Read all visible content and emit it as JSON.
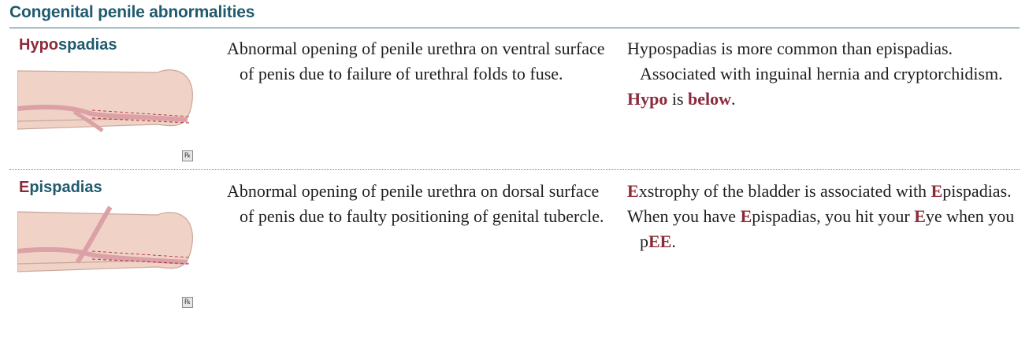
{
  "section_title": "Congenital penile abnormalities",
  "rows": [
    {
      "term_hl": "Hypo",
      "term_rest": "spadias",
      "illustration": "penis-ventral-urethra-illustration",
      "rx_symbol": "℞",
      "description": "Abnormal opening of penile urethra on ventral surface of penis due to failure of urethral folds to fuse.",
      "note1": "Hypospadias is more common than epispadias. Associated with inguinal hernia and cryptorchidism.",
      "mnemonic_a": "Hypo",
      "mnemonic_b": " is ",
      "mnemonic_c": "below",
      "mnemonic_d": "."
    },
    {
      "term_hl": "E",
      "term_rest": "pispadias",
      "illustration": "penis-dorsal-urethra-illustration",
      "rx_symbol": "℞",
      "description": "Abnormal opening of penile urethra on dorsal surface of penis due to faulty positioning of genital tubercle.",
      "note1_a": "E",
      "note1_b": "xstrophy of the bladder is associated with ",
      "note1_c": "E",
      "note1_d": "pispadias.",
      "note2_a": "When you have ",
      "note2_b": "E",
      "note2_c": "pispadias, you hit your ",
      "note2_d": "E",
      "note2_e": "ye when you p",
      "note2_f": "EE",
      "note2_g": "."
    }
  ],
  "colors": {
    "title": "#1f5a6e",
    "highlight": "#8c2a3a",
    "illustration_skin": "#f0d3c6",
    "illustration_urethra": "#dba1a6"
  }
}
